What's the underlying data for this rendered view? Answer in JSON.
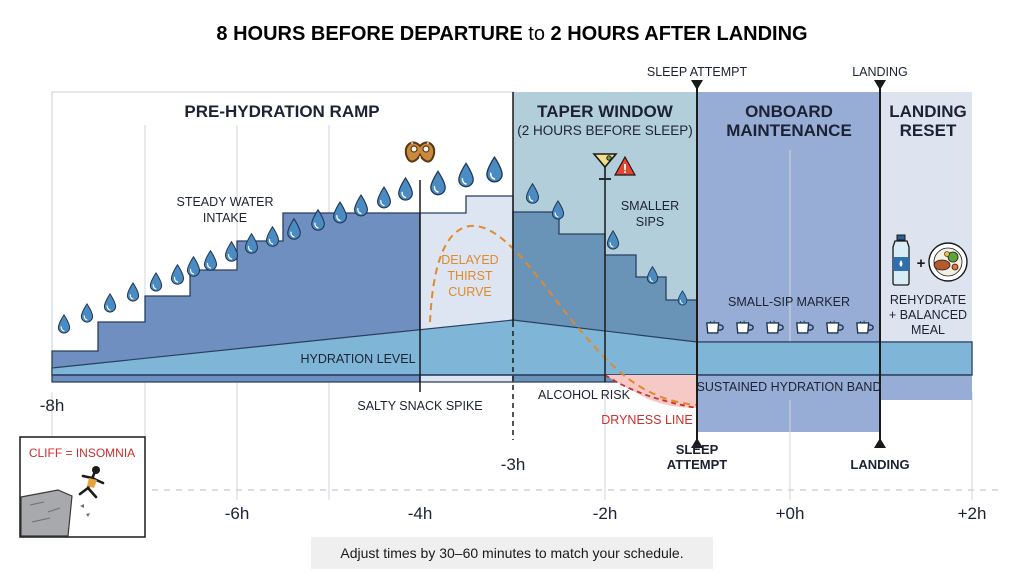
{
  "title": {
    "part1": "8 HOURS BEFORE DEPARTURE",
    "connector": "to",
    "part2": "2 HOURS AFTER LANDING"
  },
  "zones": {
    "pre_hydration": "PRE-HYDRATION RAMP",
    "taper_title": "TAPER WINDOW",
    "taper_sub": "(2 HOURS BEFORE SLEEP)",
    "onboard_line1": "ONBOARD",
    "onboard_line2": "MAINTENANCE",
    "landing_reset_line1": "LANDING",
    "landing_reset_line2": "RESET"
  },
  "top_markers": {
    "sleep_attempt": "SLEEP ATTEMPT",
    "landing": "LANDING"
  },
  "labels": {
    "steady_water_line1": "STEADY WATER",
    "steady_water_line2": "INTAKE",
    "delayed_line1": "DELAYED",
    "delayed_line2": "THIRST",
    "delayed_line3": "CURVE",
    "smaller_sips_line1": "SMALLER",
    "smaller_sips_line2": "SIPS",
    "small_sip_marker": "SMALL-SIP MARKER",
    "rehydrate_line1": "REHYDRATE",
    "rehydrate_line2": "+ BALANCED",
    "rehydrate_line3": "MEAL",
    "plus": "+",
    "hydration_level": "HYDRATION LEVEL",
    "sustained_band": "SUSTAINED HYDRATION BAND",
    "salty_snack": "SALTY SNACK SPIKE",
    "alcohol_risk": "ALCOHOL RISK",
    "dryness_line": "DRYNESS LINE",
    "sleep_attempt_line1": "SLEEP",
    "sleep_attempt_line2": "ATTEMPT",
    "landing_bottom": "LANDING",
    "cliff": "CLIFF = INSOMNIA"
  },
  "ticks": {
    "m8": "-8h",
    "m6": "-6h",
    "m4": "-4h",
    "m3": "-3h",
    "m2": "-2h",
    "z0": "+0h",
    "p2": "+2h"
  },
  "icons": {
    "snack": "pretzel-icon",
    "alcohol": "cocktail-glass-icon",
    "warning": "warning-triangle-icon",
    "cup": "cup-icon",
    "water_bottle": "water-bottle-icon",
    "meal": "meal-plate-icon",
    "drop": "water-drop-icon",
    "cliff": "falling-person-cliff-icon"
  },
  "colors": {
    "hydration_fill": "#7fb6d8",
    "staircase_fill": "#6f8fc0",
    "taper_zone": "#b3cedb",
    "onboard_zone": "#98add5",
    "dryness_red": "#c8302c",
    "thirst_orange": "#e08a2a",
    "drop_blue": "#4a8bc3"
  },
  "footer": {
    "note": "Adjust times by 30–60 minutes to match your schedule."
  }
}
